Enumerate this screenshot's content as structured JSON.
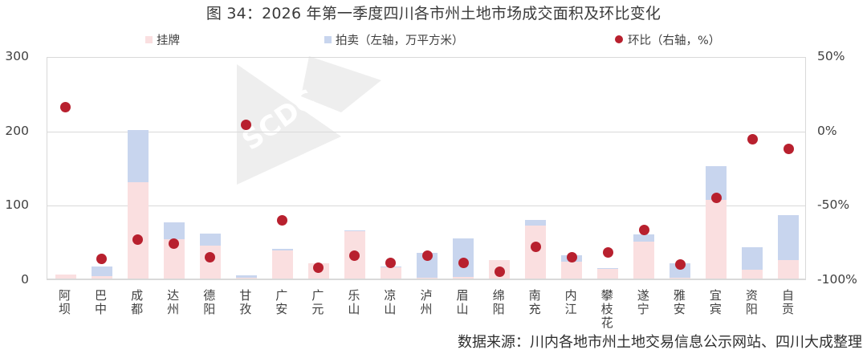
{
  "title": "图 34：2026 年第一季度四川各市州土地市场成交面积及环比变化",
  "legend": [
    {
      "label": "挂牌",
      "type": "bar",
      "color": "#FADFE0"
    },
    {
      "label": "拍卖（左轴，万平方米）",
      "type": "bar",
      "color": "#C8D5EE"
    },
    {
      "label": "环比（右轴，%）",
      "type": "dot",
      "color": "#B8202E"
    }
  ],
  "axes": {
    "left_ticks": [
      "300",
      "200",
      "100",
      "0"
    ],
    "right_ticks": [
      "50%",
      "0%",
      "-50%",
      "-100%"
    ]
  },
  "watermark": "SCDC",
  "source": "数据来源：川内各地市州土地交易信息公示网站、四川大成整理",
  "chart_data": {
    "type": "bar",
    "stacked": true,
    "title": "图 34：2026 年第一季度四川各市州土地市场成交面积及环比变化",
    "xlabel": "",
    "ylabel": "万平方米",
    "y2label": "%",
    "ylim": [
      0,
      300
    ],
    "y2lim": [
      -100,
      50
    ],
    "grid": true,
    "legend_position": "top",
    "categories": [
      "阿坝",
      "巴中",
      "成都",
      "达州",
      "德阳",
      "甘孜",
      "广安",
      "广元",
      "乐山",
      "凉山",
      "泸州",
      "眉山",
      "绵阳",
      "南充",
      "内江",
      "攀枝花",
      "遂宁",
      "雅安",
      "宜宾",
      "资阳",
      "自贡"
    ],
    "series": [
      {
        "name": "挂牌",
        "axis": "left",
        "type": "bar",
        "color": "#FADFE0",
        "values": [
          5,
          3,
          130,
          53,
          44,
          1,
          38,
          20,
          64,
          15,
          1,
          2,
          25,
          71,
          23,
          13,
          50,
          1,
          106,
          12,
          25
        ]
      },
      {
        "name": "拍卖（左轴，万平方米）",
        "axis": "left",
        "type": "bar",
        "color": "#C8D5EE",
        "values": [
          0,
          13,
          70,
          23,
          16,
          3,
          2,
          0,
          1,
          1,
          34,
          52,
          0,
          8,
          8,
          1,
          9,
          20,
          45,
          30,
          60
        ]
      },
      {
        "name": "环比（右轴，%）",
        "axis": "right",
        "type": "scatter",
        "color": "#B8202E",
        "values": [
          17,
          -85,
          -72,
          -75,
          -84,
          5,
          -59,
          -91,
          -83,
          -88,
          -83,
          -88,
          -94,
          -77,
          -84,
          -81,
          -66,
          -89,
          -44,
          -5,
          -11
        ]
      }
    ]
  }
}
